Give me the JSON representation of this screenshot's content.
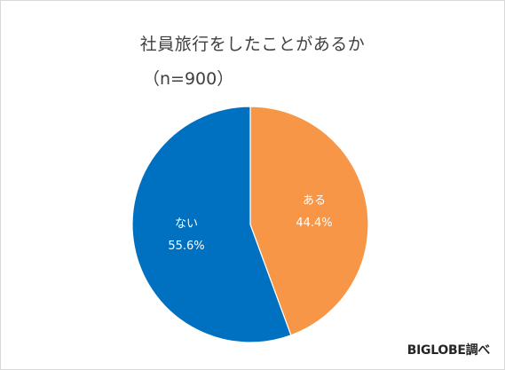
{
  "chart_data": {
    "type": "pie",
    "title": "社員旅行をしたことがあるか",
    "subtitle": "（n=900）",
    "slices": [
      {
        "label": "ある",
        "value": 44.4,
        "value_label": "44.4%",
        "color": "#f79646"
      },
      {
        "label": "ない",
        "value": 55.6,
        "value_label": "55.6%",
        "color": "#0070c0"
      }
    ],
    "start_angle_deg": 0,
    "direction": "clockwise",
    "slice_border_color": "#ffffff",
    "legend": "none"
  },
  "footer": {
    "source": "BIGLOBE調べ"
  }
}
